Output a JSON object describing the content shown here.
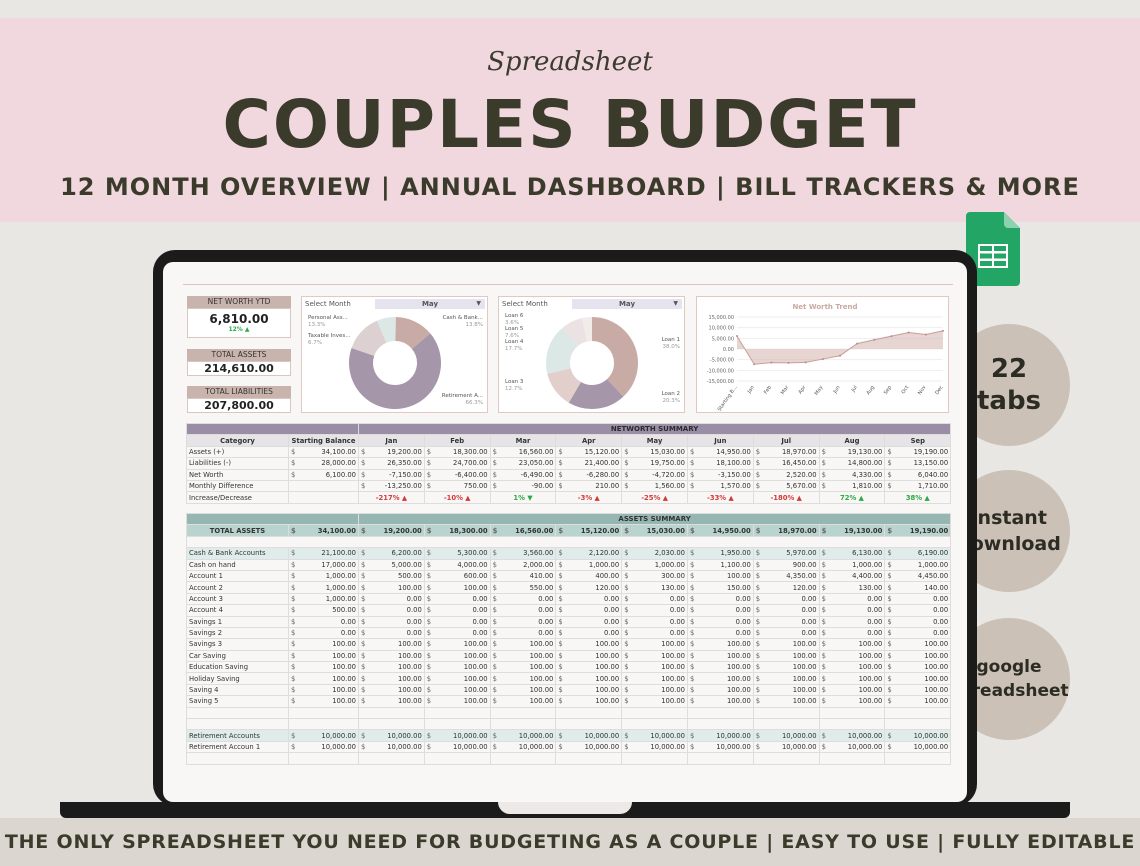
{
  "header": {
    "script": "Spreadsheet",
    "title": "COUPLES BUDGET",
    "subtitle": "12 MONTH OVERVIEW | ANNUAL DASHBOARD | BILL TRACKERS & MORE"
  },
  "footer": "THE ONLY SPREADSHEET YOU NEED FOR BUDGETING AS A COUPLE | EASY TO USE | FULLY EDITABLE",
  "badges": {
    "tabs_num": "22",
    "tabs_word": "tabs",
    "instant": "instant",
    "download": "download",
    "google": "google",
    "spreadsheet": "spreadsheet"
  },
  "kpis": {
    "net_worth_label": "NET WORTH YTD",
    "net_worth_value": "6,810.00",
    "net_worth_change": "12% ▲",
    "assets_label": "TOTAL ASSETS",
    "assets_value": "214,610.00",
    "liabilities_label": "TOTAL LIABILITIES",
    "liabilities_value": "207,800.00"
  },
  "assets_donut": {
    "select_label": "Select Month",
    "month": "May",
    "labels": {
      "a": "Personal Ass...",
      "a_pct": "13.3%",
      "b": "Taxable Inves...",
      "b_pct": "6.7%",
      "c": "Cash & Bank...",
      "c_pct": "13.8%",
      "d": "Retirement A...",
      "d_pct": "66.3%"
    }
  },
  "liab_donut": {
    "select_label": "Select Month",
    "month": "May",
    "labels": {
      "l6": "Loan 6",
      "l6p": "3.6%",
      "l5": "Loan 5",
      "l5p": "7.6%",
      "l4": "Loan 4",
      "l4p": "17.7%",
      "l3": "Loan 3",
      "l3p": "12.7%",
      "l1": "Loan 1",
      "l1p": "38.0%",
      "l2": "Loan 2",
      "l2p": "20.3%"
    }
  },
  "chart_data": {
    "type": "area",
    "title": "Net Worth Trend",
    "x": [
      "Starting B...",
      "Jan",
      "Feb",
      "Mar",
      "Apr",
      "May",
      "Jun",
      "Jul",
      "Aug",
      "Sep",
      "Oct",
      "Nov",
      "Dec"
    ],
    "values": [
      6100,
      -7150,
      -6400,
      -6490,
      -6280,
      -4720,
      -3150,
      2520,
      4330,
      6040,
      7720,
      6810,
      8510
    ],
    "ylim": [
      -15000,
      15000
    ],
    "yticks": [
      "15,000.00",
      "10,000.00",
      "5,000.00",
      "0.00",
      "-5,000.00",
      "-10,000.00",
      "-15,000.00"
    ],
    "color": "#d7b9b4"
  },
  "networth": {
    "title": "NETWORTH SUMMARY",
    "cols": [
      "Category",
      "Starting Balance",
      "Jan",
      "Feb",
      "Mar",
      "Apr",
      "May",
      "Jun",
      "Jul",
      "Aug",
      "Sep"
    ],
    "rows": [
      {
        "cat": "Assets (+)",
        "vals": [
          "34,100.00",
          "19,200.00",
          "18,300.00",
          "16,560.00",
          "15,120.00",
          "15,030.00",
          "14,950.00",
          "18,970.00",
          "19,130.00",
          "19,190.00"
        ]
      },
      {
        "cat": "Liabilities (-)",
        "vals": [
          "28,000.00",
          "26,350.00",
          "24,700.00",
          "23,050.00",
          "21,400.00",
          "19,750.00",
          "18,100.00",
          "16,450.00",
          "14,800.00",
          "13,150.00"
        ]
      },
      {
        "cat": "Net Worth",
        "vals": [
          "6,100.00",
          "-7,150.00",
          "-6,400.00",
          "-6,490.00",
          "-6,280.00",
          "-4,720.00",
          "-3,150.00",
          "2,520.00",
          "4,330.00",
          "6,040.00"
        ]
      },
      {
        "cat": "Monthly Difference",
        "vals": [
          "",
          "-13,250.00",
          "750.00",
          "-90.00",
          "210.00",
          "1,560.00",
          "1,570.00",
          "5,670.00",
          "1,810.00",
          "1,710.00"
        ]
      }
    ],
    "inc_label": "Increase/Decrease",
    "inc": [
      "-217% ▲",
      "-10% ▲",
      "1% ▼",
      "-3% ▲",
      "-25% ▲",
      "-33% ▲",
      "-180% ▲",
      "72% ▲",
      "38% ▲"
    ],
    "inc_pos": [
      false,
      false,
      true,
      false,
      false,
      false,
      false,
      true,
      true
    ]
  },
  "assets": {
    "title": "ASSETS SUMMARY",
    "total_label": "TOTAL ASSETS",
    "total": [
      "34,100.00",
      "19,200.00",
      "18,300.00",
      "16,560.00",
      "15,120.00",
      "15,030.00",
      "14,950.00",
      "18,970.00",
      "19,130.00",
      "19,190.00"
    ],
    "rows": [
      {
        "cat": "Cash & Bank Accounts",
        "sec": true,
        "vals": [
          "21,100.00",
          "6,200.00",
          "5,300.00",
          "3,560.00",
          "2,120.00",
          "2,030.00",
          "1,950.00",
          "5,970.00",
          "6,130.00",
          "6,190.00"
        ]
      },
      {
        "cat": "Cash on hand",
        "vals": [
          "17,000.00",
          "5,000.00",
          "4,000.00",
          "2,000.00",
          "1,000.00",
          "1,000.00",
          "1,100.00",
          "900.00",
          "1,000.00",
          "1,000.00"
        ]
      },
      {
        "cat": "Account 1",
        "vals": [
          "1,000.00",
          "500.00",
          "600.00",
          "410.00",
          "400.00",
          "300.00",
          "100.00",
          "4,350.00",
          "4,400.00",
          "4,450.00"
        ]
      },
      {
        "cat": "Account 2",
        "vals": [
          "1,000.00",
          "100.00",
          "100.00",
          "550.00",
          "120.00",
          "130.00",
          "150.00",
          "120.00",
          "130.00",
          "140.00"
        ]
      },
      {
        "cat": "Account 3",
        "vals": [
          "1,000.00",
          "0.00",
          "0.00",
          "0.00",
          "0.00",
          "0.00",
          "0.00",
          "0.00",
          "0.00",
          "0.00"
        ]
      },
      {
        "cat": "Account 4",
        "vals": [
          "500.00",
          "0.00",
          "0.00",
          "0.00",
          "0.00",
          "0.00",
          "0.00",
          "0.00",
          "0.00",
          "0.00"
        ]
      },
      {
        "cat": "Savings 1",
        "vals": [
          "0.00",
          "0.00",
          "0.00",
          "0.00",
          "0.00",
          "0.00",
          "0.00",
          "0.00",
          "0.00",
          "0.00"
        ]
      },
      {
        "cat": "Savings 2",
        "vals": [
          "0.00",
          "0.00",
          "0.00",
          "0.00",
          "0.00",
          "0.00",
          "0.00",
          "0.00",
          "0.00",
          "0.00"
        ]
      },
      {
        "cat": "Savings 3",
        "vals": [
          "100.00",
          "100.00",
          "100.00",
          "100.00",
          "100.00",
          "100.00",
          "100.00",
          "100.00",
          "100.00",
          "100.00"
        ]
      },
      {
        "cat": "Car Saving",
        "vals": [
          "100.00",
          "100.00",
          "100.00",
          "100.00",
          "100.00",
          "100.00",
          "100.00",
          "100.00",
          "100.00",
          "100.00"
        ]
      },
      {
        "cat": "Education Saving",
        "vals": [
          "100.00",
          "100.00",
          "100.00",
          "100.00",
          "100.00",
          "100.00",
          "100.00",
          "100.00",
          "100.00",
          "100.00"
        ]
      },
      {
        "cat": "Holiday Saving",
        "vals": [
          "100.00",
          "100.00",
          "100.00",
          "100.00",
          "100.00",
          "100.00",
          "100.00",
          "100.00",
          "100.00",
          "100.00"
        ]
      },
      {
        "cat": "Saving 4",
        "vals": [
          "100.00",
          "100.00",
          "100.00",
          "100.00",
          "100.00",
          "100.00",
          "100.00",
          "100.00",
          "100.00",
          "100.00"
        ]
      },
      {
        "cat": "Saving 5",
        "vals": [
          "100.00",
          "100.00",
          "100.00",
          "100.00",
          "100.00",
          "100.00",
          "100.00",
          "100.00",
          "100.00",
          "100.00"
        ]
      },
      {
        "cat": "",
        "vals": [
          "",
          "",
          "",
          "",
          "",
          "",
          "",
          "",
          "",
          ""
        ]
      },
      {
        "cat": "",
        "vals": [
          "",
          "",
          "",
          "",
          "",
          "",
          "",
          "",
          "",
          ""
        ]
      },
      {
        "cat": "Retirement Accounts",
        "sec": true,
        "vals": [
          "10,000.00",
          "10,000.00",
          "10,000.00",
          "10,000.00",
          "10,000.00",
          "10,000.00",
          "10,000.00",
          "10,000.00",
          "10,000.00",
          "10,000.00"
        ]
      },
      {
        "cat": "Retirement Accoun 1",
        "vals": [
          "10,000.00",
          "10,000.00",
          "10,000.00",
          "10,000.00",
          "10,000.00",
          "10,000.00",
          "10,000.00",
          "10,000.00",
          "10,000.00",
          "10,000.00"
        ]
      },
      {
        "cat": "",
        "vals": [
          "",
          "",
          "",
          "",
          "",
          "",
          "",
          "",
          "",
          ""
        ]
      }
    ]
  }
}
